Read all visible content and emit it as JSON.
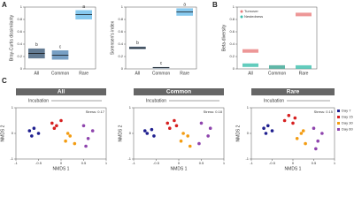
{
  "chart_data": [
    {
      "type": "box",
      "panel": "A",
      "ylabel": "Bray-Curtis dissimilarity",
      "categories": [
        "All",
        "Common",
        "Rare"
      ],
      "values": [
        0.25,
        0.22,
        0.88
      ],
      "low": [
        0.17,
        0.15,
        0.8
      ],
      "high": [
        0.33,
        0.3,
        0.95
      ],
      "annotations": [
        "b",
        "c",
        "a"
      ],
      "colors": [
        "#2f4f6f",
        "#4a7fb0",
        "#5fb7e8"
      ],
      "ylim": [
        0,
        1
      ],
      "yticks": [
        0,
        0.2,
        0.4,
        0.6,
        0.8,
        1
      ]
    },
    {
      "type": "box",
      "ylabel": "Sorensen's index",
      "categories": [
        "All",
        "Common",
        "Rare"
      ],
      "values": [
        0.34,
        0.02,
        0.92
      ],
      "low": [
        0.32,
        0.01,
        0.86
      ],
      "high": [
        0.36,
        0.03,
        0.98
      ],
      "annotations": [
        "b",
        "c",
        "a"
      ],
      "colors": [
        "#2f4f6f",
        "#4a7fb0",
        "#5fb7e8"
      ],
      "ylim": [
        0,
        1
      ],
      "yticks": [
        0,
        0.2,
        0.4,
        0.6,
        0.8,
        1
      ]
    },
    {
      "type": "dot",
      "panel": "B",
      "ylabel": "Beta-diversity",
      "categories": [
        "All",
        "Common",
        "Rare"
      ],
      "series": [
        {
          "name": "Turnover",
          "color": "#e87d7d",
          "values": [
            0.29,
            0.03,
            0.88
          ]
        },
        {
          "name": "Nestedness",
          "color": "#3bbfad",
          "values": [
            0.06,
            0.03,
            0.03
          ]
        }
      ],
      "ylim": [
        0,
        1
      ],
      "yticks": [
        0,
        0.2,
        0.4,
        0.6,
        0.8,
        1
      ]
    },
    {
      "type": "scatter",
      "panel": "C",
      "title": "All",
      "arrow_label": "Incubation",
      "stress": "Stress: 0.17",
      "xlabel": "NMDS 1",
      "ylabel": "NMDS 2",
      "xlim": [
        -1,
        1
      ],
      "ylim": [
        -1,
        1
      ],
      "xticks": [
        -1,
        -0.5,
        0,
        0.5,
        1
      ],
      "yticks": [
        -1,
        0,
        1
      ],
      "series": [
        {
          "color": "#1f1f8f",
          "x": [
            -0.7,
            -0.6,
            -0.5,
            -0.65
          ],
          "y": [
            0.1,
            0.2,
            0.0,
            -0.1
          ]
        },
        {
          "color": "#d62020",
          "x": [
            -0.2,
            -0.1,
            0.0,
            -0.15
          ],
          "y": [
            0.4,
            0.3,
            0.5,
            0.2
          ]
        },
        {
          "color": "#f39c12",
          "x": [
            0.1,
            0.2,
            0.3,
            0.15
          ],
          "y": [
            -0.3,
            -0.1,
            -0.4,
            0.0
          ]
        },
        {
          "color": "#8e44ad",
          "x": [
            0.5,
            0.6,
            0.7,
            0.55
          ],
          "y": [
            0.3,
            -0.2,
            0.1,
            -0.5
          ]
        }
      ]
    },
    {
      "type": "scatter",
      "title": "Common",
      "arrow_label": "Incubation",
      "stress": "Stress: 0.18",
      "xlabel": "NMDS 1",
      "ylabel": "NMDS 2",
      "xlim": [
        -1,
        1
      ],
      "ylim": [
        -1,
        1
      ],
      "xticks": [
        -1,
        -0.5,
        0,
        0.5,
        1
      ],
      "yticks": [
        -1,
        0,
        1
      ],
      "series": [
        {
          "color": "#1f1f8f",
          "x": [
            -0.7,
            -0.6,
            -0.55,
            -0.75
          ],
          "y": [
            0.0,
            0.15,
            -0.1,
            0.1
          ]
        },
        {
          "color": "#d62020",
          "x": [
            -0.25,
            -0.1,
            -0.05,
            -0.2
          ],
          "y": [
            0.4,
            0.5,
            0.3,
            0.2
          ]
        },
        {
          "color": "#f39c12",
          "x": [
            0.05,
            0.2,
            0.25,
            0.1
          ],
          "y": [
            -0.3,
            -0.1,
            -0.5,
            0.0
          ]
        },
        {
          "color": "#8e44ad",
          "x": [
            0.5,
            0.65,
            0.7,
            0.45
          ],
          "y": [
            0.4,
            -0.1,
            0.2,
            -0.4
          ]
        }
      ]
    },
    {
      "type": "scatter",
      "title": "Rare",
      "arrow_label": "Incubation",
      "stress": "Stress: 0.15",
      "xlabel": "NMDS 1",
      "ylabel": "NMDS 2",
      "xlim": [
        -1,
        1
      ],
      "ylim": [
        -1,
        1
      ],
      "xticks": [
        -1,
        -0.5,
        0,
        0.5,
        1
      ],
      "yticks": [
        -1,
        0,
        1
      ],
      "legend": true,
      "series": [
        {
          "name": "Day 7",
          "color": "#1f1f8f",
          "x": [
            -0.7,
            -0.6,
            -0.5,
            -0.65
          ],
          "y": [
            0.2,
            0.3,
            0.1,
            0.0
          ]
        },
        {
          "name": "Day 15",
          "color": "#d62020",
          "x": [
            -0.2,
            -0.1,
            0.0,
            0.05
          ],
          "y": [
            0.5,
            0.7,
            0.4,
            0.6
          ]
        },
        {
          "name": "Day 30",
          "color": "#f39c12",
          "x": [
            0.1,
            0.2,
            0.3,
            0.25
          ],
          "y": [
            -0.2,
            0.0,
            -0.4,
            0.1
          ]
        },
        {
          "name": "Day 60",
          "color": "#8e44ad",
          "x": [
            0.5,
            0.6,
            0.7,
            0.55
          ],
          "y": [
            0.2,
            -0.3,
            0.0,
            -0.6
          ]
        }
      ]
    }
  ]
}
